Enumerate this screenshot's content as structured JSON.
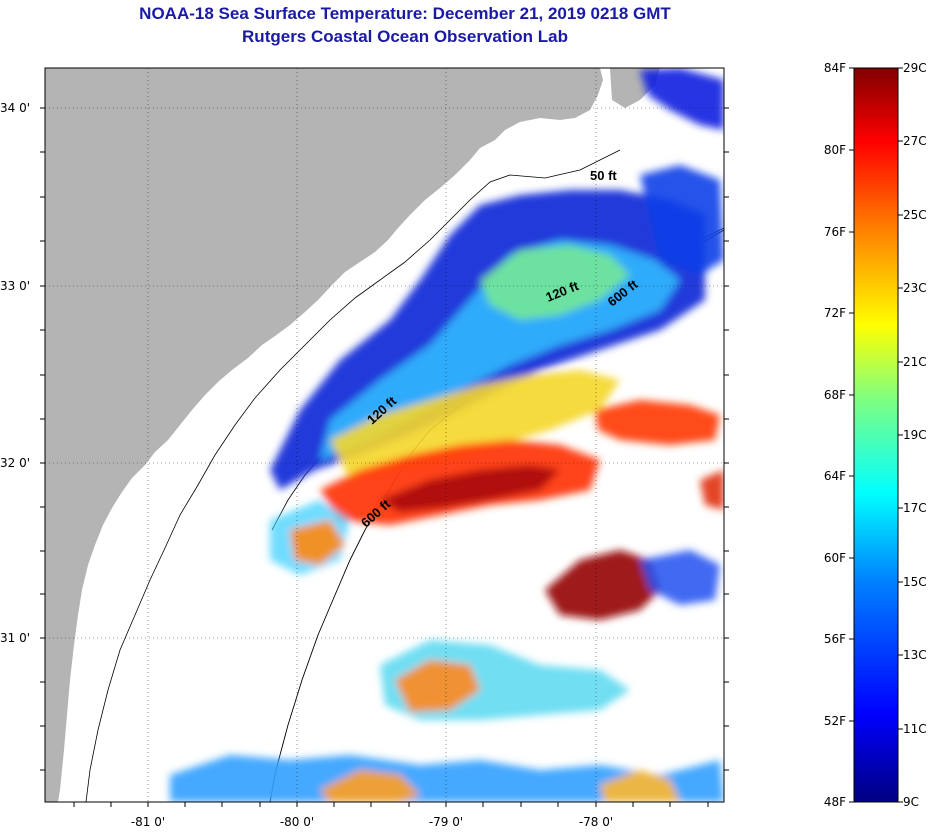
{
  "header": {
    "title": "NOAA-18 Sea Surface Temperature:  December 21, 2019 0218 GMT",
    "subtitle": "Rutgers Coastal Ocean Observation Lab"
  },
  "axes": {
    "lat_labels": [
      "34 0'",
      "33 0'",
      "32 0'",
      "31 0'"
    ],
    "lon_labels": [
      "-81 0'",
      "-80 0'",
      "-79 0'",
      "-78 0'"
    ]
  },
  "contours": {
    "label_50": "50 ft",
    "label_120": "120 ft",
    "label_600": "600 ft"
  },
  "colorbar": {
    "fahrenheit_labels": [
      "84F",
      "80F",
      "76F",
      "72F",
      "68F",
      "64F",
      "60F",
      "56F",
      "52F",
      "48F"
    ],
    "celsius_labels": [
      "29C",
      "27C",
      "25C",
      "23C",
      "21C",
      "19C",
      "17C",
      "15C",
      "13C",
      "11C",
      "9C"
    ],
    "colors": [
      "#000080",
      "#0000ff",
      "#0080ff",
      "#00ffff",
      "#80ff80",
      "#ffff00",
      "#ff8000",
      "#ff0000",
      "#800000"
    ]
  },
  "colors": {
    "land": "#b4b4b4",
    "title": "#1a1aa6"
  }
}
